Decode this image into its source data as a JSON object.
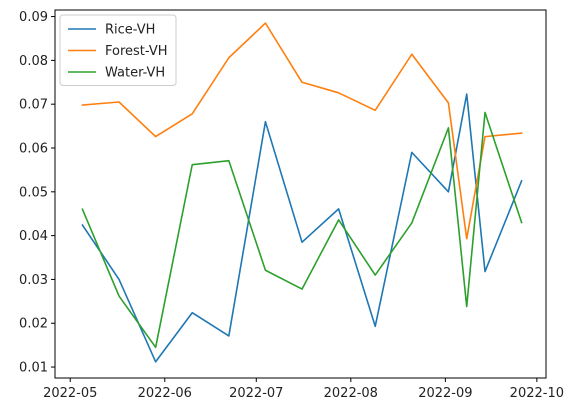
{
  "chart_data": {
    "type": "line",
    "title": "",
    "xlabel": "",
    "ylabel": "",
    "x_axis_type": "date",
    "xlim": [
      "2022-04-26",
      "2022-10-04"
    ],
    "ylim": [
      0.0075,
      0.0915
    ],
    "x_ticks": [
      {
        "date": "2022-05-01",
        "label": "2022-05"
      },
      {
        "date": "2022-06-01",
        "label": "2022-06"
      },
      {
        "date": "2022-07-01",
        "label": "2022-07"
      },
      {
        "date": "2022-08-01",
        "label": "2022-08"
      },
      {
        "date": "2022-09-01",
        "label": "2022-09"
      },
      {
        "date": "2022-10-01",
        "label": "2022-10"
      }
    ],
    "y_ticks": [
      {
        "value": 0.01,
        "label": "0.01"
      },
      {
        "value": 0.02,
        "label": "0.02"
      },
      {
        "value": 0.03,
        "label": "0.03"
      },
      {
        "value": 0.04,
        "label": "0.04"
      },
      {
        "value": 0.05,
        "label": "0.05"
      },
      {
        "value": 0.06,
        "label": "0.06"
      },
      {
        "value": 0.07,
        "label": "0.07"
      },
      {
        "value": 0.08,
        "label": "0.08"
      },
      {
        "value": 0.09,
        "label": "0.09"
      }
    ],
    "grid": false,
    "legend_position": "top-left",
    "x": [
      "2022-05-05",
      "2022-05-17",
      "2022-05-29",
      "2022-06-10",
      "2022-06-22",
      "2022-07-04",
      "2022-07-16",
      "2022-07-28",
      "2022-08-09",
      "2022-08-21",
      "2022-09-02",
      "2022-09-08",
      "2022-09-14",
      "2022-09-26"
    ],
    "series": [
      {
        "name": "Rice-VH",
        "color": "#1f77b4",
        "values": [
          0.0424,
          0.03,
          0.0112,
          0.0224,
          0.0171,
          0.066,
          0.0385,
          0.0461,
          0.0193,
          0.059,
          0.05,
          0.0723,
          0.0318,
          0.0525
        ]
      },
      {
        "name": "Forest-VH",
        "color": "#ff7f0e",
        "values": [
          0.0698,
          0.0705,
          0.0626,
          0.0678,
          0.0806,
          0.0885,
          0.075,
          0.0726,
          0.0686,
          0.0814,
          0.0703,
          0.0393,
          0.0626,
          0.0634
        ]
      },
      {
        "name": "Water-VH",
        "color": "#2ca02c",
        "values": [
          0.046,
          0.0262,
          0.0145,
          0.0562,
          0.0571,
          0.0321,
          0.0278,
          0.0436,
          0.031,
          0.0429,
          0.0646,
          0.0238,
          0.0681,
          0.043
        ]
      }
    ]
  }
}
